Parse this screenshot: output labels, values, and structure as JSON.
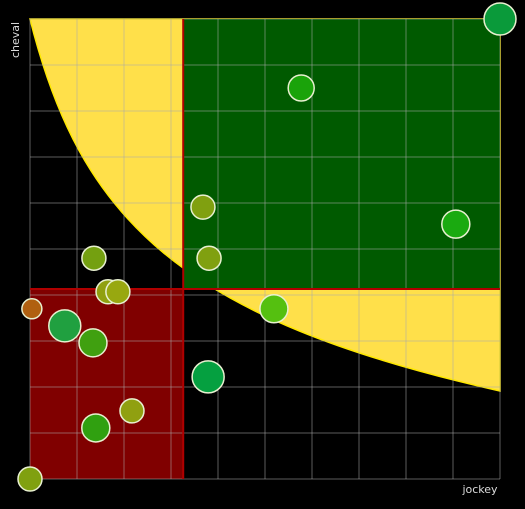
{
  "chart_data": {
    "type": "scatter",
    "x_label": "jockey",
    "y_label": "cheval",
    "xlim": [
      0,
      100
    ],
    "ylim": [
      0,
      100
    ],
    "xticks": [
      0,
      10,
      20,
      30,
      40,
      50,
      60,
      70,
      80,
      90,
      100
    ],
    "yticks": [
      0,
      10,
      20,
      30,
      40,
      50,
      60,
      70,
      80,
      90,
      100
    ],
    "grid": true,
    "x_threshold": 32.6,
    "y_threshold": 41.3,
    "x": [
      100,
      57.7,
      36.8,
      90.6,
      13.6,
      38.1,
      16.6,
      18.7,
      0.4,
      51.9,
      7.4,
      13.4,
      37.9,
      21.7,
      14.0,
      0
    ],
    "values": [
      100,
      85.0,
      59.1,
      55.4,
      48.0,
      48.0,
      40.7,
      40.7,
      37.0,
      37.0,
      33.3,
      29.6,
      22.2,
      14.8,
      11.1,
      0
    ],
    "sizes": [
      16,
      13,
      12,
      14,
      12,
      12,
      12,
      12,
      10,
      14,
      16,
      14,
      16,
      12,
      14,
      12
    ],
    "colors": [
      "#0a9a3a",
      "#1aa30a",
      "#80a010",
      "#1aaa10",
      "#74a010",
      "#80a010",
      "#90a010",
      "#98a810",
      "#b06010",
      "#55c010",
      "#20a040",
      "#40a010",
      "#05a040",
      "#90a010",
      "#30a010",
      "#80a010"
    ]
  }
}
